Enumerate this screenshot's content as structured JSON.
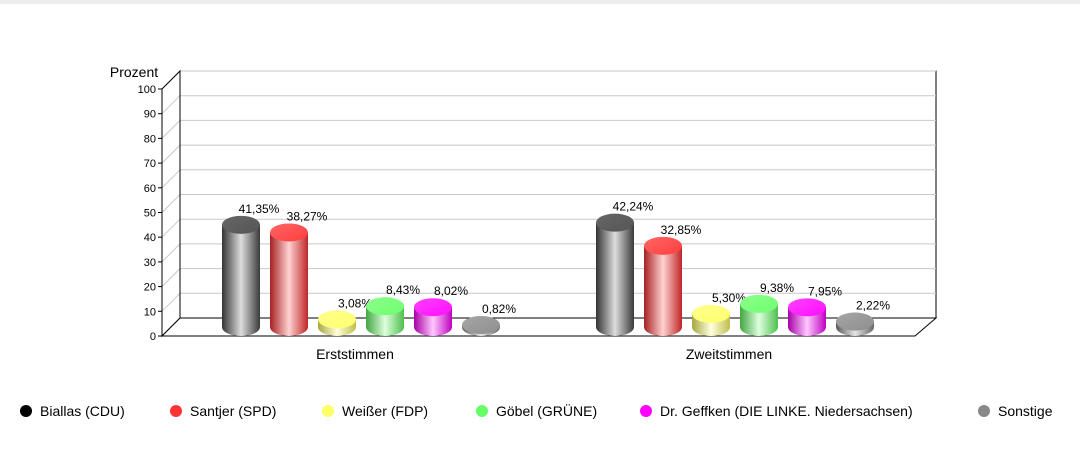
{
  "chart_data": {
    "type": "bar",
    "style": "3d-cylinder",
    "ylabel": "Prozent",
    "ylim": [
      0,
      100
    ],
    "yticks": [
      "0",
      "10",
      "20",
      "30",
      "40",
      "50",
      "60",
      "70",
      "80",
      "90",
      "100"
    ],
    "grid": true,
    "legend_position": "bottom",
    "categories": [
      "Erststimmen",
      "Zweitstimmen"
    ],
    "series": [
      {
        "name": "Biallas (CDU)",
        "color": "#000000",
        "values": [
          41.35,
          42.24
        ],
        "labels": [
          "41,35%",
          "42,24%"
        ]
      },
      {
        "name": "Santjer (SPD)",
        "color": "#ff3333",
        "values": [
          38.27,
          32.85
        ],
        "labels": [
          "38,27%",
          "32,85%"
        ]
      },
      {
        "name": "Weißer (FDP)",
        "color": "#ffff66",
        "values": [
          3.08,
          5.3
        ],
        "labels": [
          "3,08%",
          "5,30%"
        ]
      },
      {
        "name": "Göbel (GRÜNE)",
        "color": "#66ff66",
        "values": [
          8.43,
          9.38
        ],
        "labels": [
          "8,43%",
          "9,38%"
        ]
      },
      {
        "name": "Dr. Geffken (DIE LINKE. Niedersachsen)",
        "color": "#ff00ff",
        "values": [
          8.02,
          7.95
        ],
        "labels": [
          "8,02%",
          "7,95%"
        ]
      },
      {
        "name": "Sonstige",
        "color": "#888888",
        "values": [
          0.82,
          2.22
        ],
        "labels": [
          "0,82%",
          "2,22%"
        ]
      }
    ]
  }
}
